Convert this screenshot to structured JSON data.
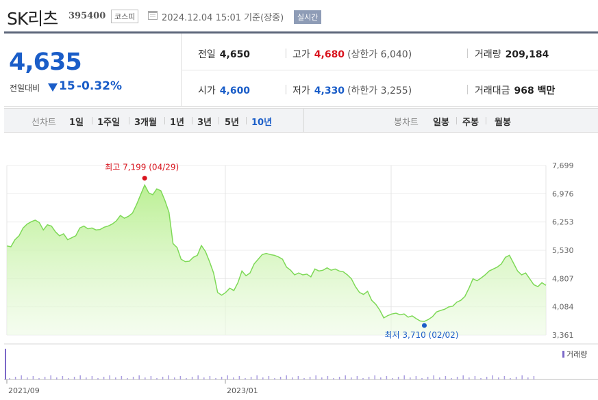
{
  "header": {
    "name": "SK리츠",
    "code": "395400",
    "market": "코스피",
    "timestamp": "2024.12.04 15:01 기준(장중)",
    "live_badge": "실시간"
  },
  "quote": {
    "price": "4,635",
    "compare_label": "전일대비",
    "change": "15",
    "change_pct": "-0.32%",
    "prev_label": "전일",
    "prev": "4,650",
    "open_label": "시가",
    "open": "4,600",
    "high_label": "고가",
    "high": "4,680",
    "upper_limit": "(상한가 6,040)",
    "low_label": "저가",
    "low": "4,330",
    "lower_limit": "(하한가 3,255)",
    "volume_label": "거래량",
    "volume": "209,184",
    "amount_label": "거래대금",
    "amount": "968 백만"
  },
  "periods": {
    "line_label": "선차트",
    "line_options": [
      "1일",
      "1주일",
      "3개월",
      "1년",
      "3년",
      "5년",
      "10년"
    ],
    "selected": "10년",
    "candle_label": "봉차트",
    "candle_options": [
      "일봉",
      "주봉",
      "월봉"
    ]
  },
  "colors": {
    "up": "#d9141e",
    "down": "#1a5dc8",
    "line": "#7ed957",
    "volume": "#7b68c8"
  },
  "icons": {
    "timestamp": "calendar-icon",
    "change": "down-triangle-icon"
  },
  "chart_data": {
    "type": "area",
    "y_ticks": [
      "7,699",
      "6,976",
      "6,253",
      "5,530",
      "4,807",
      "4,084",
      "3,361"
    ],
    "ylim": [
      3361,
      7699
    ],
    "x_tick_labels": [
      "2021/09",
      "2023/01"
    ],
    "volume_label": "거래량",
    "annotations": {
      "high_text": "최고 7,199 (04/29)",
      "low_text": "최저 3,710 (02/02)"
    },
    "series": [
      {
        "values": [
          5640,
          5620,
          5800,
          5900,
          6100,
          6200,
          6260,
          6300,
          6240,
          6050,
          6180,
          6150,
          6000,
          5900,
          5950,
          5800,
          5850,
          5900,
          6100,
          6150,
          6080,
          6100,
          6050,
          6060,
          6120,
          6150,
          6200,
          6280,
          6420,
          6350,
          6400,
          6480,
          6700,
          6950,
          7199,
          7000,
          6950,
          7100,
          7050,
          6800,
          6500,
          5700,
          5600,
          5300,
          5240,
          5250,
          5350,
          5400,
          5650,
          5500,
          5240,
          4950,
          4450,
          4380,
          4450,
          4560,
          4500,
          4700,
          5000,
          4880,
          4950,
          5180,
          5300,
          5420,
          5450,
          5420,
          5400,
          5360,
          5300,
          5100,
          5020,
          4900,
          4950,
          4900,
          4920,
          4850,
          5050,
          5000,
          5020,
          5080,
          5020,
          5050,
          5000,
          4980,
          4900,
          4800,
          4600,
          4450,
          4400,
          4480,
          4250,
          4150,
          4000,
          3800,
          3860,
          3900,
          3920,
          3880,
          3900,
          3820,
          3850,
          3780,
          3720,
          3710,
          3760,
          3830,
          3950,
          3990,
          4020,
          4080,
          4100,
          4200,
          4250,
          4350,
          4560,
          4800,
          4750,
          4820,
          4900,
          5000,
          5050,
          5100,
          5180,
          5350,
          5400,
          5200,
          5000,
          4900,
          4950,
          4800,
          4650,
          4600,
          4700,
          4635
        ]
      }
    ]
  }
}
